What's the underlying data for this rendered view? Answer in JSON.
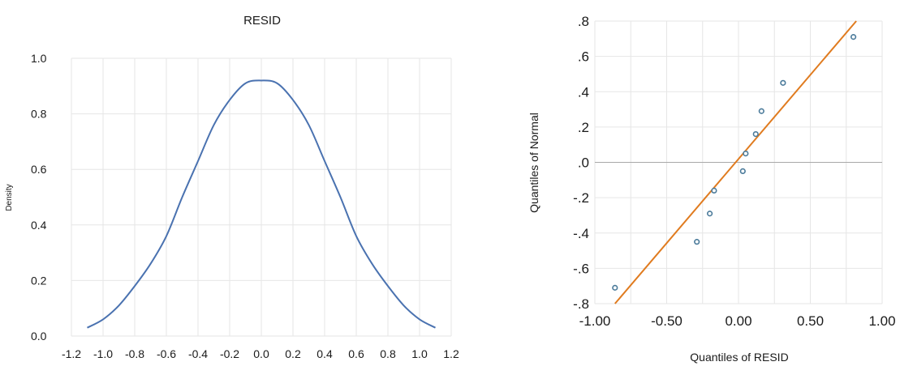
{
  "chart_data": [
    {
      "type": "line",
      "title": "RESID",
      "xlabel": "",
      "ylabel": "Density",
      "xlim": [
        -1.2,
        1.2
      ],
      "ylim": [
        0.0,
        1.0
      ],
      "grid": true,
      "x_ticks": [
        "-1.2",
        "-1.0",
        "-0.8",
        "-0.6",
        "-0.4",
        "-0.2",
        "0.0",
        "0.2",
        "0.4",
        "0.6",
        "0.8",
        "1.0",
        "1.2"
      ],
      "y_ticks": [
        "0.0",
        "0.2",
        "0.4",
        "0.6",
        "0.8",
        "1.0"
      ],
      "line_color": "#4a72b0",
      "series": [
        {
          "x": [
            -1.1,
            -1.0,
            -0.9,
            -0.8,
            -0.7,
            -0.6,
            -0.5,
            -0.4,
            -0.3,
            -0.2,
            -0.1,
            0.0,
            0.1,
            0.2,
            0.3,
            0.4,
            0.5,
            0.6,
            0.7,
            0.8,
            0.9,
            1.0,
            1.1
          ],
          "values": [
            0.03,
            0.06,
            0.11,
            0.18,
            0.26,
            0.36,
            0.5,
            0.63,
            0.76,
            0.85,
            0.91,
            0.92,
            0.91,
            0.85,
            0.76,
            0.63,
            0.5,
            0.36,
            0.26,
            0.18,
            0.11,
            0.06,
            0.03
          ]
        }
      ]
    },
    {
      "type": "scatter",
      "title": "",
      "xlabel": "Quantiles of RESID",
      "ylabel": "Quantiles of Normal",
      "xlim": [
        -1.0,
        1.0
      ],
      "ylim": [
        -0.8,
        0.8
      ],
      "grid": true,
      "x_ticks": [
        "-1.00",
        "-0.50",
        "0.00",
        "0.50",
        "1.00"
      ],
      "y_ticks": [
        ".8",
        ".6",
        ".4",
        ".2",
        ".0",
        "-.2",
        "-.4",
        "-.6",
        "-.8"
      ],
      "point_color": "#4a7a9a",
      "line_color": "#e07b1f",
      "series": [
        {
          "x": [
            -0.86,
            -0.29,
            -0.2,
            -0.17,
            0.03,
            0.05,
            0.12,
            0.16,
            0.31,
            0.8
          ],
          "values": [
            -0.71,
            -0.45,
            -0.29,
            -0.16,
            -0.05,
            0.05,
            0.16,
            0.29,
            0.45,
            0.71
          ]
        }
      ],
      "reference_line": {
        "x": [
          -0.86,
          0.82
        ],
        "y": [
          -0.8,
          0.8
        ]
      }
    }
  ]
}
